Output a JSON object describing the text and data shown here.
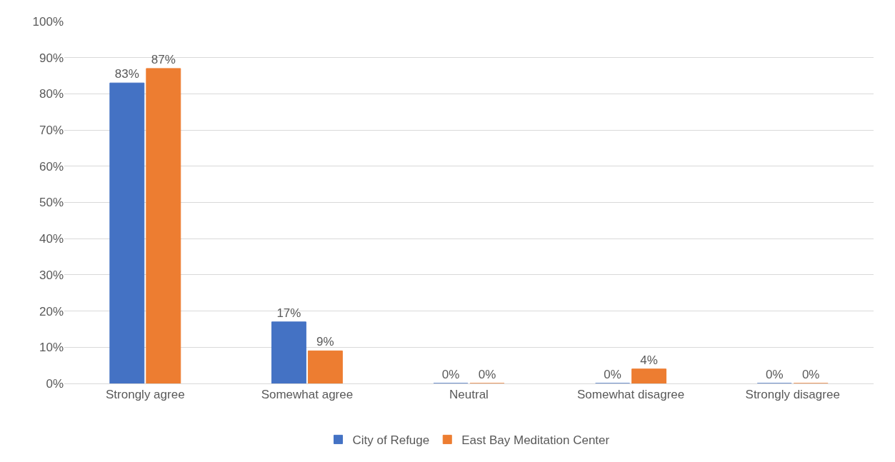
{
  "chart_data": {
    "type": "bar",
    "categories": [
      "Strongly agree",
      "Somewhat agree",
      "Neutral",
      "Somewhat disagree",
      "Strongly disagree"
    ],
    "series": [
      {
        "name": "City of Refuge",
        "color": "#4472c4",
        "values": [
          83,
          17,
          0,
          0,
          0
        ],
        "value_labels": [
          "83%",
          "17%",
          "0%",
          "0%",
          "0%"
        ]
      },
      {
        "name": "East Bay Meditation Center",
        "color": "#ed7d31",
        "values": [
          87,
          9,
          0,
          4,
          0
        ],
        "value_labels": [
          "87%",
          "9%",
          "0%",
          "4%",
          "0%"
        ]
      }
    ],
    "ylim": [
      0,
      100
    ],
    "yticks": [
      {
        "value": 0,
        "label": "0%"
      },
      {
        "value": 10,
        "label": "10%"
      },
      {
        "value": 20,
        "label": "20%"
      },
      {
        "value": 30,
        "label": "30%"
      },
      {
        "value": 40,
        "label": "40%"
      },
      {
        "value": 50,
        "label": "50%"
      },
      {
        "value": 60,
        "label": "60%"
      },
      {
        "value": 70,
        "label": "70%"
      },
      {
        "value": 80,
        "label": "80%"
      },
      {
        "value": 90,
        "label": "90%"
      },
      {
        "value": 100,
        "label": "100%"
      }
    ],
    "grid": "y",
    "legend": "bottom"
  }
}
